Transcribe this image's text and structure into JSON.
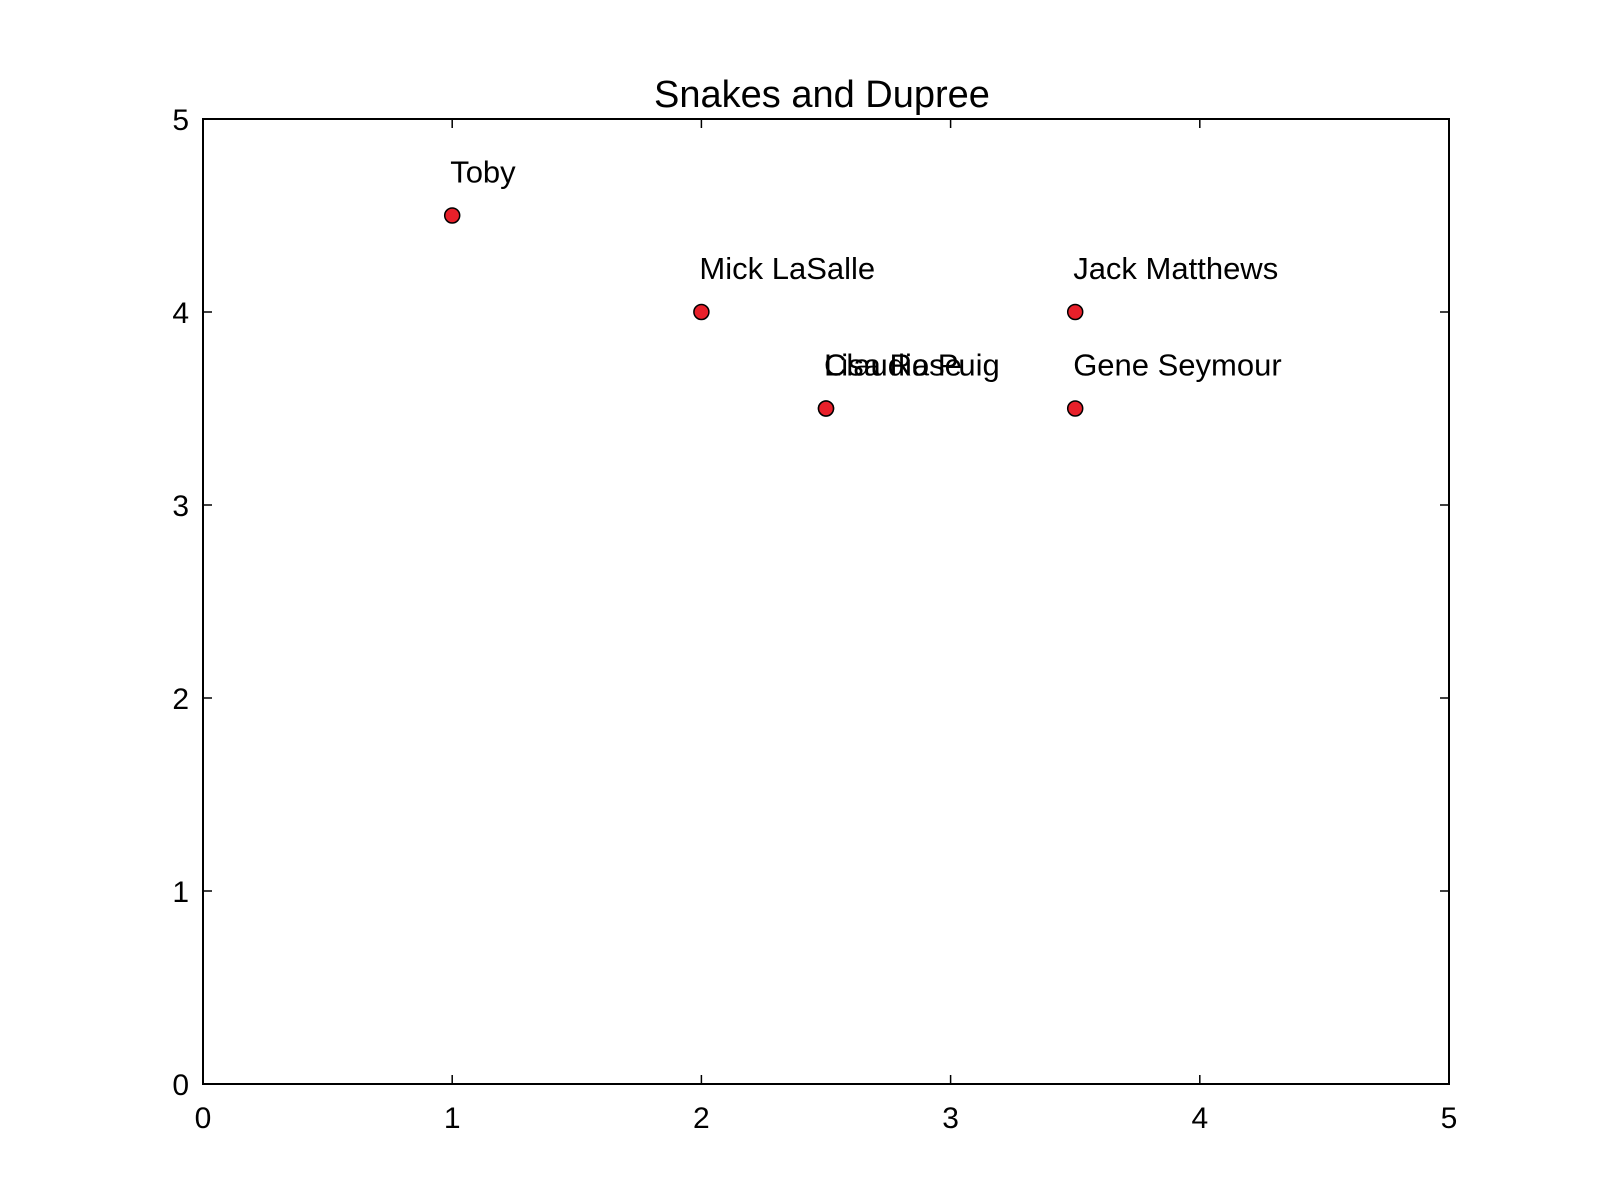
{
  "chart_data": {
    "type": "scatter",
    "title": "Snakes and Dupree",
    "xlabel": "",
    "ylabel": "",
    "xlim": [
      0,
      5
    ],
    "ylim": [
      0,
      5
    ],
    "xticks": [
      "0",
      "1",
      "2",
      "3",
      "4",
      "5"
    ],
    "yticks": [
      "0",
      "1",
      "2",
      "3",
      "4",
      "5"
    ],
    "grid": false,
    "marker_color": "#e8202a",
    "marker_edge_color": "#000000",
    "points": [
      {
        "label": "Toby",
        "x": 1.0,
        "y": 4.5
      },
      {
        "label": "Mick LaSalle",
        "x": 2.0,
        "y": 4.0
      },
      {
        "label": "Lisa Rose",
        "x": 2.5,
        "y": 3.5
      },
      {
        "label": "Claudia Puig",
        "x": 2.5,
        "y": 3.5
      },
      {
        "label": "Jack Matthews",
        "x": 3.5,
        "y": 4.0
      },
      {
        "label": "Gene Seymour",
        "x": 3.5,
        "y": 3.5
      }
    ]
  }
}
